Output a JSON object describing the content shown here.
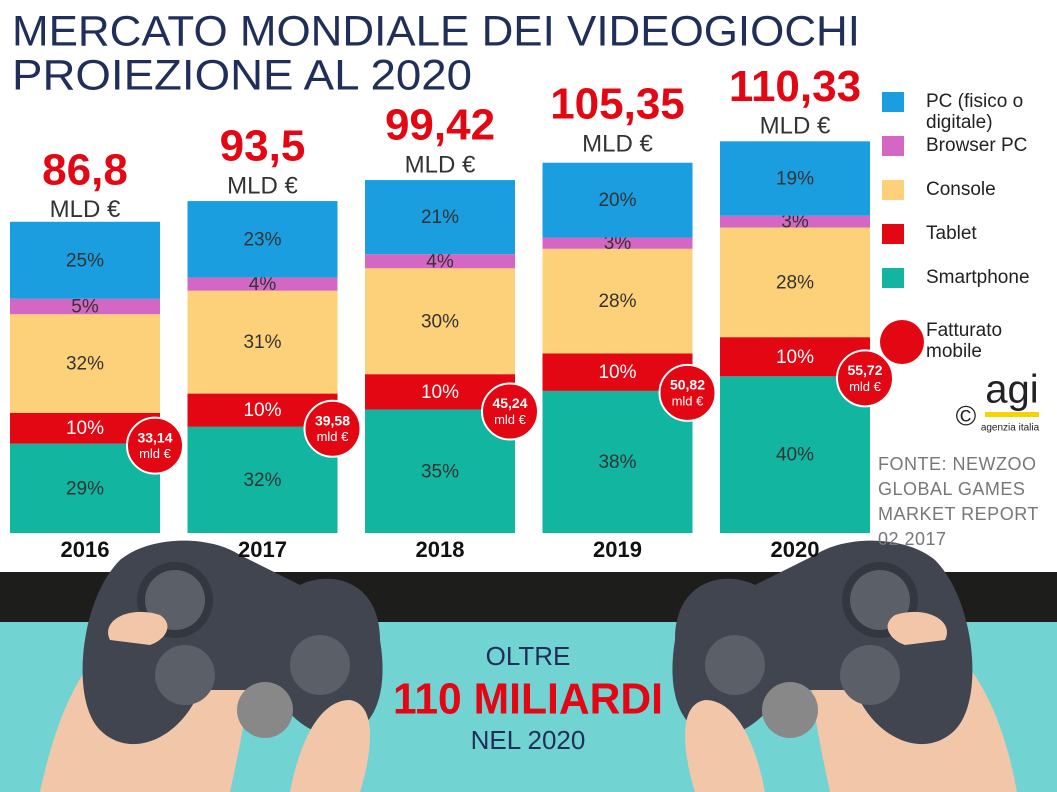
{
  "chart_data": {
    "type": "bar",
    "stacked": true,
    "title": "MERCATO MONDIALE DEI VIDEOGIOCHI",
    "subtitle": "PROIEZIONE AL 2020",
    "categories": [
      "2016",
      "2017",
      "2018",
      "2019",
      "2020"
    ],
    "series": [
      {
        "name": "Smartphone",
        "color": "#12b5a0",
        "values": [
          29,
          32,
          35,
          38,
          40
        ],
        "value_labels": [
          "29%",
          "32%",
          "35%",
          "38%",
          "40%"
        ]
      },
      {
        "name": "Tablet",
        "color": "#e30613",
        "values": [
          10,
          10,
          10,
          10,
          10
        ],
        "value_labels": [
          "10%",
          "10%",
          "10%",
          "10%",
          "10%"
        ]
      },
      {
        "name": "Console",
        "color": "#fdd17a",
        "values": [
          32,
          31,
          30,
          28,
          28
        ],
        "value_labels": [
          "32%",
          "31%",
          "30%",
          "28%",
          "28%"
        ]
      },
      {
        "name": "Browser PC",
        "color": "#d467c4",
        "values": [
          5,
          4,
          4,
          3,
          3
        ],
        "value_labels": [
          "5%",
          "4%",
          "4%",
          "3%",
          "3%"
        ]
      },
      {
        "name": "PC (fisico o digitale)",
        "color": "#1a9ee0",
        "values": [
          25,
          23,
          21,
          20,
          19
        ],
        "value_labels": [
          "25%",
          "23%",
          "21%",
          "20%",
          "19%"
        ]
      }
    ],
    "totals": {
      "values": [
        86.8,
        93.5,
        99.42,
        105.35,
        110.33
      ],
      "value_labels": [
        "86,8",
        "93,5",
        "99,42",
        "105,35",
        "110,33"
      ],
      "unit": "MLD €",
      "color": "#e30613"
    },
    "mobile": {
      "name": "Fatturato mobile",
      "color": "#e30613",
      "values": [
        33.14,
        39.58,
        45.24,
        50.82,
        55.72
      ],
      "value_labels": [
        "33,14",
        "39,58",
        "45,24",
        "50,82",
        "55,72"
      ],
      "unit": "mld €"
    },
    "source": "FONTE: NEWZOO GLOBAL GAMES MARKET REPORT 02 2017",
    "logo": {
      "copyright": "©",
      "mark": "agi",
      "text": "agenzia italia"
    },
    "banner": {
      "top": "OLTRE",
      "headline": "110 MILIARDI",
      "bottom": "NEL 2020"
    }
  }
}
